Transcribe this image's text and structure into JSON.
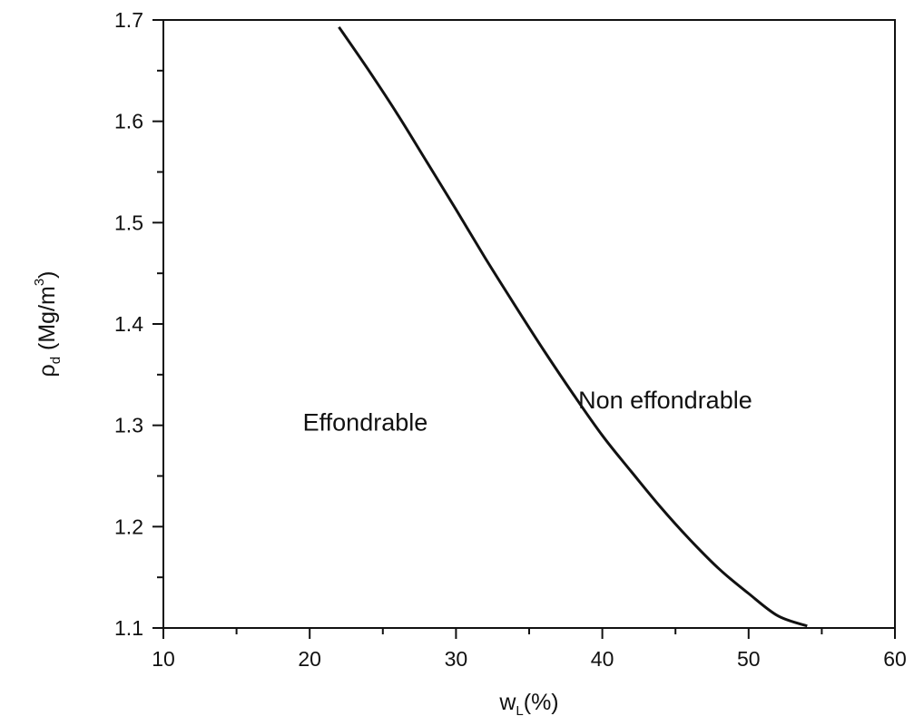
{
  "chart_data": {
    "type": "line",
    "xlabel": {
      "main": "w",
      "sub": "L",
      "suffix": "(%)"
    },
    "ylabel": {
      "main": "ρ",
      "sub": "d",
      "suffix": " (Mg/m",
      "sup": "3",
      "close": ")"
    },
    "xlim": [
      10,
      60
    ],
    "ylim": [
      1.1,
      1.7
    ],
    "x_ticks": [
      10,
      20,
      30,
      40,
      50,
      60
    ],
    "y_ticks": [
      1.1,
      1.2,
      1.3,
      1.4,
      1.5,
      1.6,
      1.7
    ],
    "x_tick_labels": [
      "10",
      "20",
      "30",
      "40",
      "50",
      "60"
    ],
    "y_tick_labels": [
      "1.1",
      "1.2",
      "1.3",
      "1.4",
      "1.5",
      "1.6",
      "1.7"
    ],
    "grid": false,
    "series": [
      {
        "color": "#111111",
        "x": [
          22.0,
          24.0,
          26.0,
          28.0,
          30.0,
          32.0,
          34.0,
          36.0,
          38.0,
          40.0,
          42.0,
          44.0,
          46.0,
          48.0,
          50.0,
          52.0,
          54.0
        ],
        "y": [
          1.693,
          1.651,
          1.607,
          1.56,
          1.513,
          1.465,
          1.419,
          1.374,
          1.331,
          1.29,
          1.254,
          1.219,
          1.187,
          1.158,
          1.134,
          1.112,
          1.102
        ]
      }
    ],
    "annotations": [
      {
        "text": "Effondrable",
        "x": 23.8,
        "y": 1.303
      },
      {
        "text": "Non effondrable",
        "x": 44.3,
        "y": 1.325
      }
    ]
  }
}
